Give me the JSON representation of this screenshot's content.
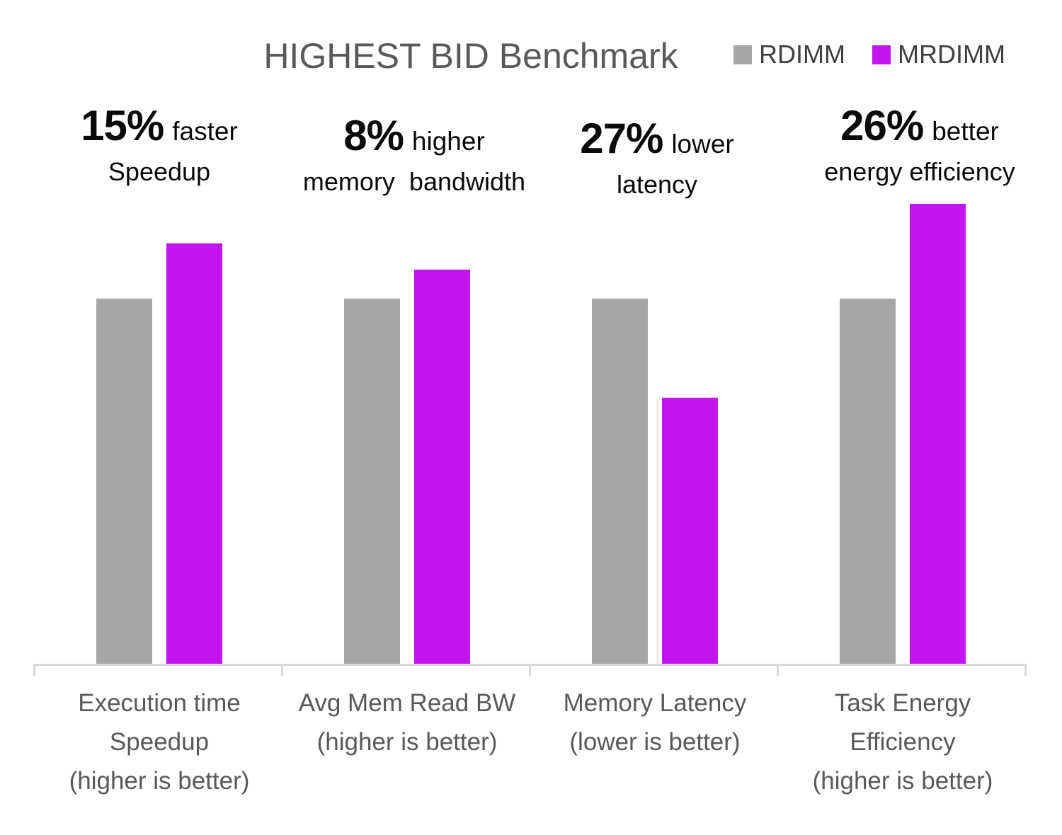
{
  "chart_data": {
    "type": "bar",
    "title": "HIGHEST BID Benchmark",
    "legend_position": "top-right",
    "grid": false,
    "ylabel": "",
    "xlabel": "",
    "ylim": [
      0,
      1.35
    ],
    "baseline_value_rdimm": 1.0,
    "series": [
      {
        "name": "RDIMM",
        "color": "#a6a6a6",
        "values": [
          1.0,
          1.0,
          1.0,
          1.0
        ]
      },
      {
        "name": "MRDIMM",
        "color": "#c414f2",
        "values": [
          1.15,
          1.08,
          0.73,
          1.26
        ]
      }
    ],
    "categories": [
      {
        "label_lines": [
          "Execution time",
          "Speedup",
          "(higher is better)"
        ]
      },
      {
        "label_lines": [
          "Avg Mem Read BW",
          "(higher is better)",
          ""
        ]
      },
      {
        "label_lines": [
          "Memory Latency",
          "(lower is better)",
          ""
        ]
      },
      {
        "label_lines": [
          "Task Energy",
          "Efficiency",
          "(higher is better)"
        ]
      }
    ],
    "annotations": [
      {
        "pct": "15%",
        "qualifier": "faster",
        "line2": "Speedup"
      },
      {
        "pct": "8%",
        "qualifier": "higher",
        "line2": "memory  bandwidth"
      },
      {
        "pct": "27%",
        "qualifier": "lower",
        "line2": "latency"
      },
      {
        "pct": "26%",
        "qualifier": "better",
        "line2": "energy efficiency"
      }
    ],
    "colors": {
      "title_text": "#595959",
      "legend_text": "#404040",
      "axis_label_text": "#595959",
      "annotation_text": "#0a0a0a",
      "axis_line": "#d8d8d8"
    }
  }
}
